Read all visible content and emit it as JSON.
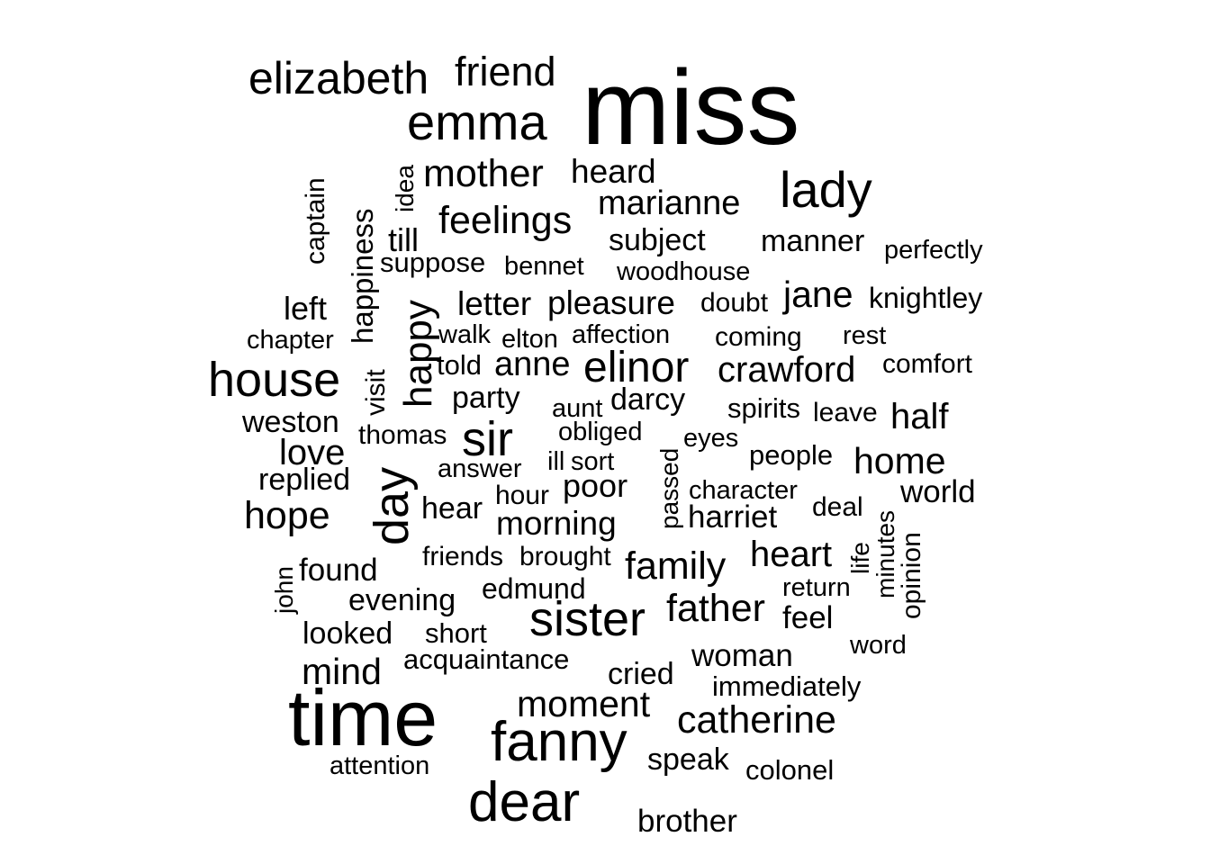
{
  "chart_data": {
    "type": "wordcloud",
    "title": "",
    "color": "#000000",
    "background": "#ffffff",
    "words": [
      {
        "text": "miss",
        "weight": 100,
        "rotated": false
      },
      {
        "text": "time",
        "weight": 80,
        "rotated": false
      },
      {
        "text": "fanny",
        "weight": 62,
        "rotated": false
      },
      {
        "text": "dear",
        "weight": 58,
        "rotated": false
      },
      {
        "text": "emma",
        "weight": 55,
        "rotated": false
      },
      {
        "text": "lady",
        "weight": 52,
        "rotated": false
      },
      {
        "text": "sister",
        "weight": 50,
        "rotated": false
      },
      {
        "text": "house",
        "weight": 50,
        "rotated": false
      },
      {
        "text": "elizabeth",
        "weight": 48,
        "rotated": false
      },
      {
        "text": "sir",
        "weight": 50,
        "rotated": false
      },
      {
        "text": "day",
        "weight": 50,
        "rotated": true
      },
      {
        "text": "friend",
        "weight": 45,
        "rotated": false
      },
      {
        "text": "elinor",
        "weight": 45,
        "rotated": false
      },
      {
        "text": "catherine",
        "weight": 42,
        "rotated": false
      },
      {
        "text": "father",
        "weight": 42,
        "rotated": false
      },
      {
        "text": "family",
        "weight": 42,
        "rotated": false
      },
      {
        "text": "hope",
        "weight": 42,
        "rotated": false
      },
      {
        "text": "mother",
        "weight": 42,
        "rotated": false
      },
      {
        "text": "feelings",
        "weight": 42,
        "rotated": false
      },
      {
        "text": "moment",
        "weight": 40,
        "rotated": false
      },
      {
        "text": "happy",
        "weight": 40,
        "rotated": true
      },
      {
        "text": "mind",
        "weight": 40,
        "rotated": false
      },
      {
        "text": "home",
        "weight": 40,
        "rotated": false
      },
      {
        "text": "jane",
        "weight": 40,
        "rotated": false
      },
      {
        "text": "crawford",
        "weight": 38,
        "rotated": false
      },
      {
        "text": "heart",
        "weight": 38,
        "rotated": false
      },
      {
        "text": "half",
        "weight": 38,
        "rotated": false
      },
      {
        "text": "love",
        "weight": 38,
        "rotated": false
      },
      {
        "text": "marianne",
        "weight": 37,
        "rotated": false
      },
      {
        "text": "anne",
        "weight": 37,
        "rotated": false
      },
      {
        "text": "heard",
        "weight": 36,
        "rotated": false
      },
      {
        "text": "pleasure",
        "weight": 36,
        "rotated": false
      },
      {
        "text": "letter",
        "weight": 36,
        "rotated": false
      },
      {
        "text": "morning",
        "weight": 36,
        "rotated": false
      },
      {
        "text": "woman",
        "weight": 35,
        "rotated": false
      },
      {
        "text": "poor",
        "weight": 35,
        "rotated": false
      },
      {
        "text": "till",
        "weight": 35,
        "rotated": false
      },
      {
        "text": "subject",
        "weight": 34,
        "rotated": false
      },
      {
        "text": "brother",
        "weight": 34,
        "rotated": false
      },
      {
        "text": "left",
        "weight": 34,
        "rotated": false
      },
      {
        "text": "darcy",
        "weight": 34,
        "rotated": false
      },
      {
        "text": "found",
        "weight": 34,
        "rotated": false
      },
      {
        "text": "harriet",
        "weight": 34,
        "rotated": false
      },
      {
        "text": "world",
        "weight": 34,
        "rotated": false
      },
      {
        "text": "feel",
        "weight": 34,
        "rotated": false
      },
      {
        "text": "speak",
        "weight": 33,
        "rotated": false
      },
      {
        "text": "cried",
        "weight": 33,
        "rotated": false
      },
      {
        "text": "manner",
        "weight": 33,
        "rotated": false
      },
      {
        "text": "looked",
        "weight": 33,
        "rotated": false
      },
      {
        "text": "party",
        "weight": 33,
        "rotated": false
      },
      {
        "text": "evening",
        "weight": 33,
        "rotated": false
      },
      {
        "text": "replied",
        "weight": 33,
        "rotated": false
      },
      {
        "text": "weston",
        "weight": 33,
        "rotated": false
      },
      {
        "text": "hear",
        "weight": 33,
        "rotated": false
      },
      {
        "text": "happiness",
        "weight": 32,
        "rotated": true
      },
      {
        "text": "knightley",
        "weight": 32,
        "rotated": false
      },
      {
        "text": "edmund",
        "weight": 32,
        "rotated": false
      },
      {
        "text": "immediately",
        "weight": 31,
        "rotated": false
      },
      {
        "text": "spirits",
        "weight": 31,
        "rotated": false
      },
      {
        "text": "short",
        "weight": 31,
        "rotated": false
      },
      {
        "text": "colonel",
        "weight": 31,
        "rotated": false
      },
      {
        "text": "captain",
        "weight": 30,
        "rotated": true
      },
      {
        "text": "acquaintance",
        "weight": 31,
        "rotated": false
      },
      {
        "text": "suppose",
        "weight": 31,
        "rotated": false
      },
      {
        "text": "told",
        "weight": 31,
        "rotated": false
      },
      {
        "text": "people",
        "weight": 31,
        "rotated": false
      },
      {
        "text": "doubt",
        "weight": 30,
        "rotated": false
      },
      {
        "text": "opinion",
        "weight": 30,
        "rotated": true
      },
      {
        "text": "comfort",
        "weight": 30,
        "rotated": false
      },
      {
        "text": "thomas",
        "weight": 30,
        "rotated": false
      },
      {
        "text": "hour",
        "weight": 30,
        "rotated": false
      },
      {
        "text": "leave",
        "weight": 30,
        "rotated": false
      },
      {
        "text": "brought",
        "weight": 30,
        "rotated": false
      },
      {
        "text": "friends",
        "weight": 30,
        "rotated": false
      },
      {
        "text": "coming",
        "weight": 30,
        "rotated": false
      },
      {
        "text": "visit",
        "weight": 30,
        "rotated": true
      },
      {
        "text": "deal",
        "weight": 30,
        "rotated": false
      },
      {
        "text": "bennet",
        "weight": 30,
        "rotated": false
      },
      {
        "text": "attention",
        "weight": 29,
        "rotated": false
      },
      {
        "text": "answer",
        "weight": 29,
        "rotated": false
      },
      {
        "text": "woodhouse",
        "weight": 29,
        "rotated": false
      },
      {
        "text": "affection",
        "weight": 29,
        "rotated": false
      },
      {
        "text": "return",
        "weight": 29,
        "rotated": false
      },
      {
        "text": "character",
        "weight": 29,
        "rotated": false
      },
      {
        "text": "sort",
        "weight": 29,
        "rotated": false
      },
      {
        "text": "aunt",
        "weight": 29,
        "rotated": false
      },
      {
        "text": "elton",
        "weight": 29,
        "rotated": false
      },
      {
        "text": "walk",
        "weight": 29,
        "rotated": false
      },
      {
        "text": "obliged",
        "weight": 29,
        "rotated": false
      },
      {
        "text": "rest",
        "weight": 29,
        "rotated": false
      },
      {
        "text": "chapter",
        "weight": 29,
        "rotated": false
      },
      {
        "text": "eyes",
        "weight": 29,
        "rotated": false
      },
      {
        "text": "ill",
        "weight": 29,
        "rotated": false
      },
      {
        "text": "word",
        "weight": 29,
        "rotated": false
      },
      {
        "text": "perfectly",
        "weight": 29,
        "rotated": false
      },
      {
        "text": "idea",
        "weight": 28,
        "rotated": true
      },
      {
        "text": "passed",
        "weight": 28,
        "rotated": true
      },
      {
        "text": "life",
        "weight": 28,
        "rotated": true
      },
      {
        "text": "minutes",
        "weight": 28,
        "rotated": true
      },
      {
        "text": "john",
        "weight": 28,
        "rotated": true
      }
    ]
  }
}
